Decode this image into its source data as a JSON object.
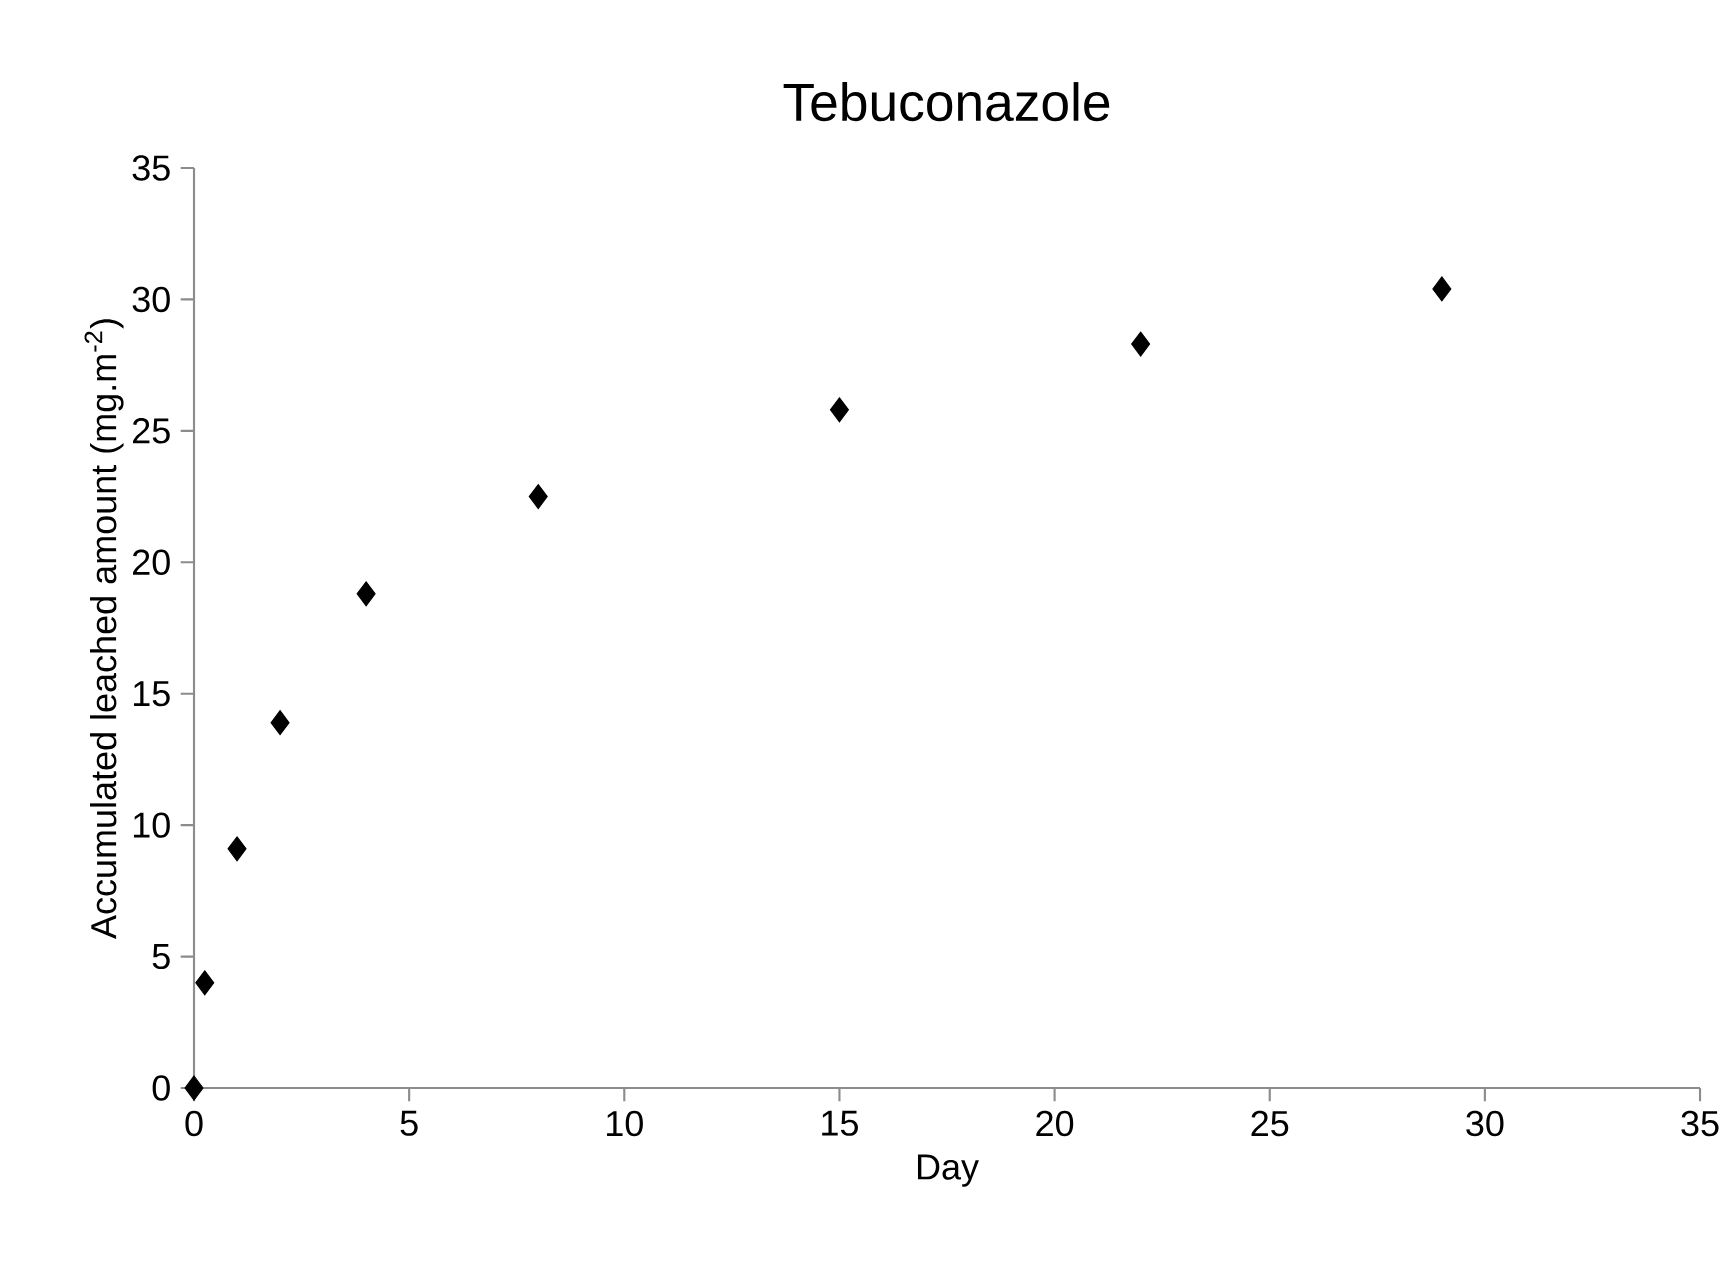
{
  "chart_data": {
    "type": "scatter",
    "title": "Tebuconazole",
    "xlabel": "Day",
    "ylabel": "Accumulated leached amount (mg.m$^{-2}$)",
    "x": [
      0,
      0.25,
      1,
      2,
      4,
      8,
      15,
      22,
      29
    ],
    "series": [
      {
        "color": "#000000",
        "values": [
          0,
          4,
          9.1,
          13.9,
          18.8,
          22.5,
          25.8,
          28.3,
          30.4
        ]
      }
    ],
    "xlim": [
      0,
      35
    ],
    "ylim": [
      0,
      35
    ],
    "xticks": [
      0,
      5,
      10,
      15,
      20,
      25,
      30,
      35
    ],
    "yticks": [
      0,
      5,
      10,
      15,
      20,
      25,
      30,
      35
    ],
    "marker": "diamond",
    "grid": false,
    "legend": false
  }
}
